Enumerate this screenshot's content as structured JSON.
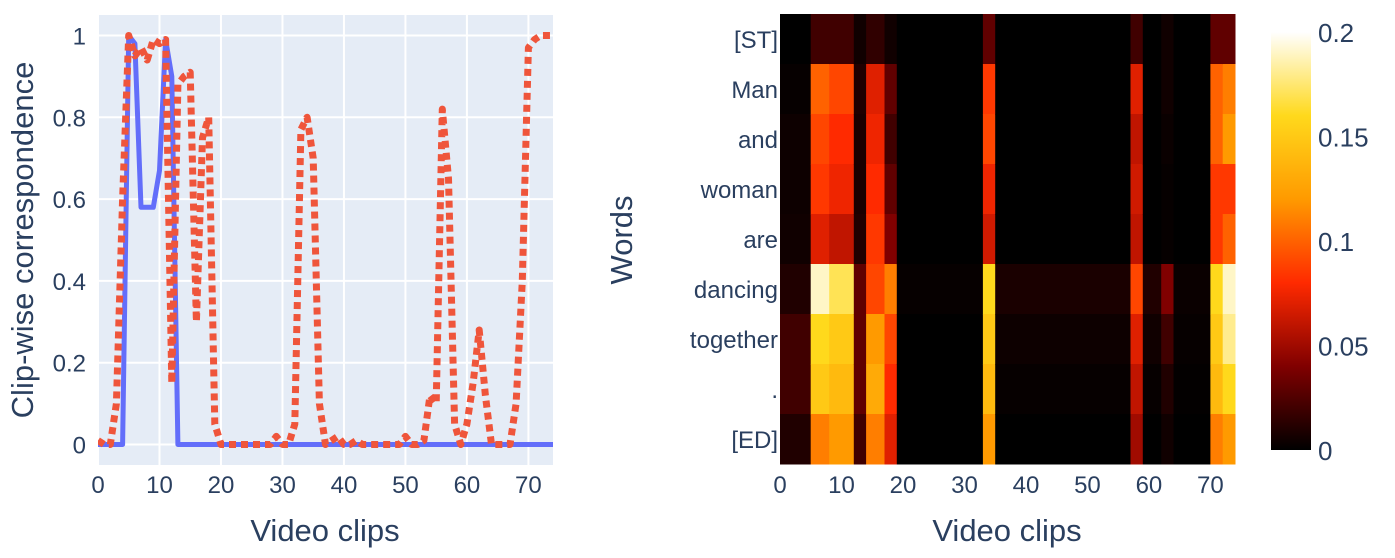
{
  "chart_data": [
    {
      "type": "line",
      "xlabel": "Video clips",
      "ylabel": "Clip-wise correspondence",
      "xlim": [
        0,
        74
      ],
      "ylim": [
        -0.05,
        1.05
      ],
      "xticks": [
        0,
        10,
        20,
        30,
        40,
        50,
        60,
        70
      ],
      "yticks": [
        0,
        0.2,
        0.4,
        0.6,
        0.8,
        1
      ],
      "ytick_labels": [
        "0",
        "0.2",
        "0.4",
        "0.6",
        "0.8",
        "1"
      ],
      "grid": true,
      "background": "#e5ecf6",
      "series": [
        {
          "style": "solid",
          "color": "#636efa",
          "x": [
            0,
            1,
            2,
            3,
            4,
            5,
            6,
            7,
            8,
            9,
            10,
            11,
            12,
            13,
            14,
            74
          ],
          "y": [
            0,
            0,
            0,
            0,
            0,
            1,
            0.98,
            0.58,
            0.58,
            0.58,
            0.67,
            0.99,
            0.9,
            0,
            0,
            0
          ]
        },
        {
          "style": "dotted",
          "color": "#ef553b",
          "x": [
            0,
            1,
            2,
            3,
            4,
            5,
            6,
            7,
            8,
            9,
            10,
            11,
            12,
            13,
            14,
            15,
            16,
            17,
            18,
            19,
            20,
            21,
            22,
            23,
            24,
            25,
            26,
            27,
            28,
            29,
            30,
            31,
            32,
            33,
            34,
            35,
            36,
            37,
            38,
            39,
            40,
            41,
            42,
            43,
            44,
            45,
            46,
            47,
            48,
            49,
            50,
            51,
            52,
            53,
            54,
            55,
            56,
            57,
            58,
            59,
            60,
            61,
            62,
            63,
            64,
            65,
            66,
            67,
            68,
            69,
            70,
            71,
            72,
            73,
            74
          ],
          "y": [
            0.01,
            0,
            0,
            0.1,
            0.6,
            1,
            0.95,
            0.97,
            0.94,
            0.99,
            0.98,
            0.99,
            0.15,
            0.88,
            0.9,
            0.91,
            0.3,
            0.75,
            0.8,
            0.05,
            0,
            0,
            0,
            0,
            0,
            0,
            0,
            0,
            0,
            0.02,
            0,
            0,
            0.05,
            0.77,
            0.8,
            0.7,
            0.1,
            0,
            0.01,
            0.02,
            0,
            0,
            0.01,
            0,
            0,
            0,
            0,
            0,
            0,
            0,
            0.02,
            0,
            0,
            0.01,
            0.12,
            0.1,
            0.82,
            0.65,
            0.05,
            0,
            0.05,
            0.15,
            0.28,
            0.12,
            0,
            0,
            0,
            0,
            0.1,
            0.4,
            0.97,
            0.99,
            1,
            1,
            1
          ]
        }
      ]
    },
    {
      "type": "heatmap",
      "xlabel": "Video clips",
      "ylabel": "Words",
      "xlim": [
        0,
        74
      ],
      "xticks": [
        0,
        10,
        20,
        30,
        40,
        50,
        60,
        70
      ],
      "rows": [
        "[ST]",
        "Man",
        "and",
        "woman",
        "are",
        "dancing",
        "together",
        ".",
        "[ED]"
      ],
      "colorbar": {
        "range": [
          0,
          0.2
        ],
        "ticks": [
          0,
          0.05,
          0.1,
          0.15,
          0.2
        ],
        "tick_labels": [
          "0",
          "0.05",
          "0.1",
          "0.15",
          "0.2"
        ],
        "colorscale": [
          "#000000",
          "#800000",
          "#ff2a00",
          "#ff9a00",
          "#ffd91c",
          "#ffffff"
        ]
      },
      "columns": [
        {
          "x0": 0,
          "x1": 5,
          "vals": [
            0,
            0.002,
            0.004,
            0.004,
            0.005,
            0.01,
            0.02,
            0.02,
            0.01
          ]
        },
        {
          "x0": 5,
          "x1": 8,
          "vals": [
            0.02,
            0.1,
            0.09,
            0.085,
            0.07,
            0.19,
            0.16,
            0.15,
            0.11
          ]
        },
        {
          "x0": 8,
          "x1": 12,
          "vals": [
            0.02,
            0.09,
            0.08,
            0.075,
            0.06,
            0.17,
            0.15,
            0.14,
            0.12
          ]
        },
        {
          "x0": 12,
          "x1": 14,
          "vals": [
            0.005,
            0.01,
            0.008,
            0.008,
            0.01,
            0.03,
            0.03,
            0.03,
            0.02
          ]
        },
        {
          "x0": 14,
          "x1": 17,
          "vals": [
            0.015,
            0.07,
            0.075,
            0.08,
            0.085,
            0.09,
            0.12,
            0.13,
            0.11
          ]
        },
        {
          "x0": 17,
          "x1": 19,
          "vals": [
            0.005,
            0.03,
            0.02,
            0.03,
            0.04,
            0.11,
            0.09,
            0.08,
            0.07
          ]
        },
        {
          "x0": 19,
          "x1": 33,
          "vals": [
            0,
            0,
            0,
            0,
            0,
            0.002,
            0,
            0,
            0
          ]
        },
        {
          "x0": 33,
          "x1": 35,
          "vals": [
            0.03,
            0.085,
            0.09,
            0.075,
            0.065,
            0.16,
            0.15,
            0.14,
            0.12
          ]
        },
        {
          "x0": 35,
          "x1": 57,
          "vals": [
            0,
            0,
            0,
            0,
            0,
            0.008,
            0.004,
            0.002,
            0
          ]
        },
        {
          "x0": 57,
          "x1": 59,
          "vals": [
            0.02,
            0.07,
            0.06,
            0.065,
            0.06,
            0.09,
            0.07,
            0.06,
            0.05
          ]
        },
        {
          "x0": 59,
          "x1": 62,
          "vals": [
            0,
            0,
            0,
            0,
            0,
            0.01,
            0.005,
            0.002,
            0
          ]
        },
        {
          "x0": 62,
          "x1": 64,
          "vals": [
            0.005,
            0.005,
            0.003,
            0.002,
            0.002,
            0.04,
            0.02,
            0.01,
            0.005
          ]
        },
        {
          "x0": 64,
          "x1": 70,
          "vals": [
            0,
            0,
            0,
            0,
            0,
            0.003,
            0.002,
            0.001,
            0
          ]
        },
        {
          "x0": 70,
          "x1": 72,
          "vals": [
            0.03,
            0.1,
            0.1,
            0.085,
            0.085,
            0.16,
            0.15,
            0.14,
            0.11
          ]
        },
        {
          "x0": 72,
          "x1": 74,
          "vals": [
            0.03,
            0.11,
            0.12,
            0.085,
            0.1,
            0.19,
            0.18,
            0.16,
            0.12
          ]
        }
      ]
    }
  ]
}
